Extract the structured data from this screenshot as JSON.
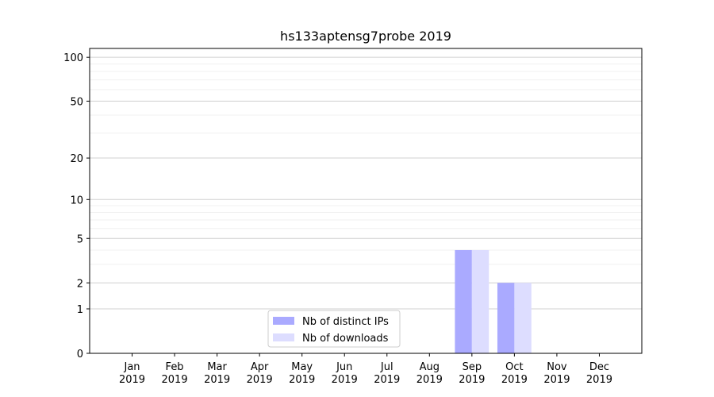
{
  "chart_data": {
    "type": "bar",
    "title": "hs133aptensg7probe 2019",
    "categories": [
      [
        "Jan",
        "2019"
      ],
      [
        "Feb",
        "2019"
      ],
      [
        "Mar",
        "2019"
      ],
      [
        "Apr",
        "2019"
      ],
      [
        "May",
        "2019"
      ],
      [
        "Jun",
        "2019"
      ],
      [
        "Jul",
        "2019"
      ],
      [
        "Aug",
        "2019"
      ],
      [
        "Sep",
        "2019"
      ],
      [
        "Oct",
        "2019"
      ],
      [
        "Nov",
        "2019"
      ],
      [
        "Dec",
        "2019"
      ]
    ],
    "series": [
      {
        "name": "Nb of distinct IPs",
        "color": "#aaaaff",
        "values": [
          0,
          0,
          0,
          0,
          0,
          0,
          0,
          0,
          4,
          2,
          0,
          0
        ]
      },
      {
        "name": "Nb of downloads",
        "color": "#ddddff",
        "values": [
          0,
          0,
          0,
          0,
          0,
          0,
          0,
          0,
          4,
          2,
          0,
          0
        ]
      }
    ],
    "yscale": "log1p",
    "ylim": [
      0,
      115
    ],
    "yticks": [
      0,
      1,
      2,
      5,
      10,
      20,
      50,
      100
    ],
    "minor_yticks": [
      3,
      4,
      6,
      7,
      8,
      9,
      30,
      40,
      60,
      70,
      80,
      90
    ],
    "grid": true,
    "legend": "lower center"
  }
}
